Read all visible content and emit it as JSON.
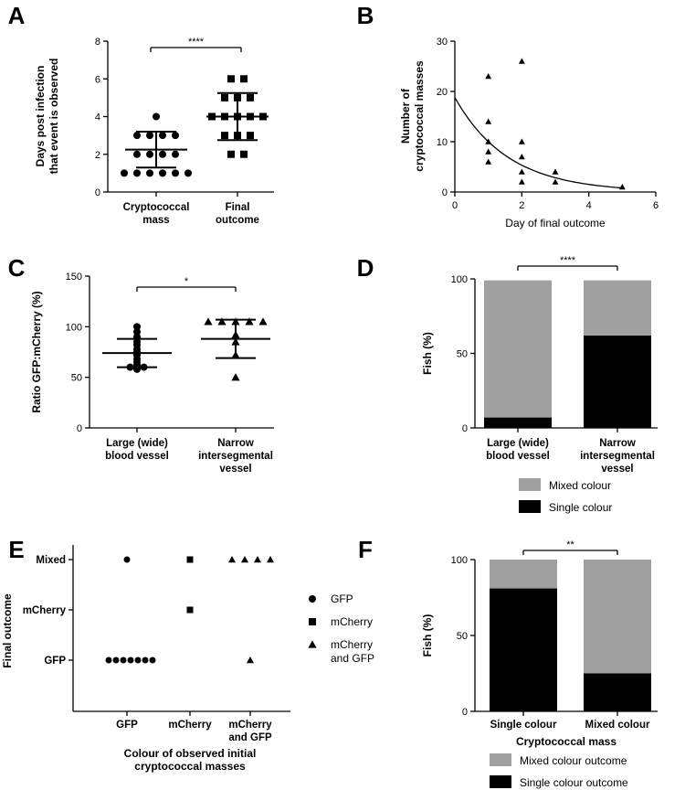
{
  "chart_data": [
    {
      "panel": "A",
      "type": "scatter",
      "categories": [
        "Cryptococcal mass",
        "Final outcome"
      ],
      "category_lines": [
        [
          "Cryptococcal",
          "mass"
        ],
        [
          "Final",
          "outcome"
        ]
      ],
      "ylabel_lines": [
        "Days post infection",
        "that event is observed"
      ],
      "ylim": [
        0,
        8
      ],
      "yticks": [
        0,
        2,
        4,
        6,
        8
      ],
      "marker": "circle-square",
      "series": [
        {
          "category": "Cryptococcal mass",
          "marker": "circle",
          "values": [
            4,
            3,
            3,
            3,
            3,
            2,
            2,
            2,
            2,
            1,
            1,
            1,
            1,
            1,
            1
          ],
          "mean": 2.25,
          "sd": 0.95
        },
        {
          "category": "Final outcome",
          "marker": "square",
          "values": [
            6,
            6,
            5,
            5,
            5,
            4,
            4,
            4,
            4,
            4,
            3,
            3,
            3,
            2,
            2
          ],
          "mean": 4.0,
          "sd": 1.25
        }
      ],
      "significance": "****"
    },
    {
      "panel": "B",
      "type": "scatter",
      "xlabel": "Day of final outcome",
      "ylabel_lines": [
        "Number of",
        "cryptococcal masses"
      ],
      "xlim": [
        0,
        6
      ],
      "ylim": [
        0,
        30
      ],
      "xticks": [
        0,
        2,
        4,
        6
      ],
      "yticks": [
        0,
        10,
        20,
        30
      ],
      "points": [
        [
          1,
          23
        ],
        [
          1,
          14
        ],
        [
          1,
          10
        ],
        [
          1,
          8
        ],
        [
          1,
          6
        ],
        [
          2,
          26
        ],
        [
          2,
          10
        ],
        [
          2,
          7
        ],
        [
          2,
          4
        ],
        [
          2,
          2
        ],
        [
          3,
          4
        ],
        [
          3,
          2
        ],
        [
          5,
          1
        ]
      ],
      "fit_curve": {
        "type": "exponential-decay",
        "y0": 18.8,
        "k": 0.63,
        "x_range": [
          0,
          5
        ]
      }
    },
    {
      "panel": "C",
      "type": "scatter",
      "categories": [
        "Large (wide) blood vessel",
        "Narrow intersegmental vessel"
      ],
      "category_lines": [
        [
          "Large (wide)",
          "blood vessel"
        ],
        [
          "Narrow",
          "intersegmental",
          "vessel"
        ]
      ],
      "ylabel": "Ratio GFP:mCherry (%)",
      "ylim": [
        0,
        150
      ],
      "yticks": [
        0,
        50,
        100,
        150
      ],
      "series": [
        {
          "category": "Large (wide) blood vessel",
          "marker": "circle",
          "values": [
            100,
            95,
            90,
            85,
            82,
            78,
            75,
            72,
            68,
            65,
            62,
            60,
            60,
            58
          ],
          "mean": 74,
          "sd": 14
        },
        {
          "category": "Narrow intersegmental vessel",
          "marker": "triangle",
          "values": [
            105,
            105,
            105,
            105,
            105,
            92,
            85,
            72,
            50
          ],
          "mean": 88,
          "sd": 19
        }
      ],
      "significance": "*"
    },
    {
      "panel": "D",
      "type": "bar",
      "stacked": true,
      "categories": [
        "Large (wide) blood vessel",
        "Narrow intersegmental vessel"
      ],
      "category_lines": [
        [
          "Large (wide)",
          "blood vessel"
        ],
        [
          "Narrow",
          "intersegmental",
          "vessel"
        ]
      ],
      "ylabel": "Fish (%)",
      "ylim": [
        0,
        100
      ],
      "yticks": [
        0,
        50,
        100
      ],
      "series": [
        {
          "name": "Single colour",
          "color": "#000000",
          "values": [
            7,
            62
          ]
        },
        {
          "name": "Mixed colour",
          "color": "#a0a0a0",
          "values": [
            92,
            37
          ]
        }
      ],
      "significance": "****",
      "legend_position": "bottom"
    },
    {
      "panel": "E",
      "type": "scatter",
      "categories": [
        "GFP",
        "mCherry",
        "mCherry and GFP"
      ],
      "category_lines": [
        [
          "GFP"
        ],
        [
          "mCherry"
        ],
        [
          "mCherry",
          "and GFP"
        ]
      ],
      "y_categories": [
        "GFP",
        "mCherry",
        "Mixed"
      ],
      "xlabel_lines": [
        "Colour of observed initial",
        "cryptococcal masses"
      ],
      "ylabel": "Final outcome",
      "points": [
        {
          "x": "GFP",
          "y": "Mixed",
          "count": 1,
          "marker": "circle"
        },
        {
          "x": "GFP",
          "y": "GFP",
          "count": 7,
          "marker": "circle"
        },
        {
          "x": "mCherry",
          "y": "Mixed",
          "count": 1,
          "marker": "square"
        },
        {
          "x": "mCherry",
          "y": "mCherry",
          "count": 1,
          "marker": "square"
        },
        {
          "x": "mCherry and GFP",
          "y": "Mixed",
          "count": 4,
          "marker": "triangle"
        },
        {
          "x": "mCherry and GFP",
          "y": "GFP",
          "count": 1,
          "marker": "triangle"
        }
      ],
      "legend": [
        {
          "marker": "circle",
          "lines": [
            "GFP"
          ]
        },
        {
          "marker": "square",
          "lines": [
            "mCherry"
          ]
        },
        {
          "marker": "triangle",
          "lines": [
            "mCherry",
            "and GFP"
          ]
        }
      ],
      "legend_position": "right"
    },
    {
      "panel": "F",
      "type": "bar",
      "stacked": true,
      "categories": [
        "Single colour",
        "Mixed colour"
      ],
      "xlabel": "Cryptococcal mass",
      "ylabel": "Fish (%)",
      "ylim": [
        0,
        100
      ],
      "yticks": [
        0,
        50,
        100
      ],
      "series": [
        {
          "name": "Single colour  outcome",
          "color": "#000000",
          "values": [
            81,
            25
          ]
        },
        {
          "name": "Mixed colour outcome",
          "color": "#a0a0a0",
          "values": [
            19,
            75
          ]
        }
      ],
      "significance": "**",
      "legend_position": "bottom"
    }
  ]
}
